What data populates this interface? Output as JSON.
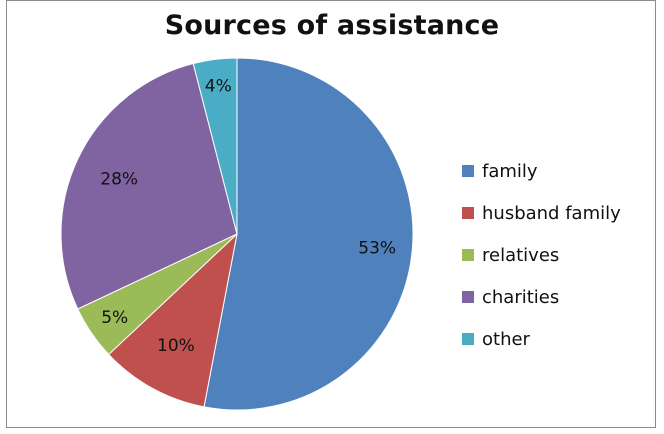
{
  "chart_data": {
    "type": "pie",
    "title": "Sources of assistance",
    "categories": [
      "family",
      "husband family",
      "relatives",
      "charities",
      "other"
    ],
    "values": [
      53,
      10,
      5,
      28,
      4
    ],
    "labels": [
      "53%",
      "10%",
      "5%",
      "28%",
      "4%"
    ],
    "colors": [
      "#4f81bd",
      "#c0504d",
      "#9bbb59",
      "#8064a2",
      "#4bacc6"
    ],
    "legend_position": "right"
  }
}
